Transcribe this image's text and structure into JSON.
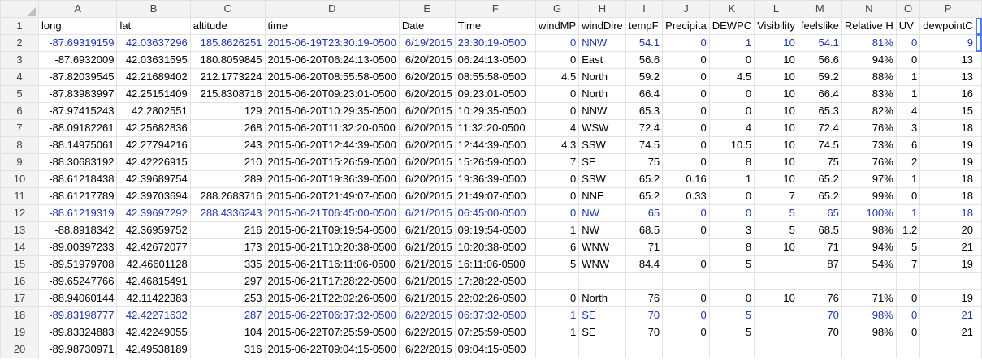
{
  "colors": {
    "blue_row_text": "#1f35a8",
    "selected_outline": "#4a7ee0",
    "header_bg": "#f3f3f3"
  },
  "columns": [
    "A",
    "B",
    "C",
    "D",
    "E",
    "F",
    "G",
    "H",
    "I",
    "J",
    "K",
    "L",
    "M",
    "N",
    "O",
    "P"
  ],
  "header_row": {
    "row_label": "1",
    "cells": [
      "long",
      "lat",
      "altitude",
      "time",
      "Date",
      "Time",
      "windMP",
      "windDire",
      "tempF",
      "Precipita",
      "DEWPC",
      "Visibility",
      "feelslike",
      "Relative H",
      "UV",
      "dewpointC"
    ]
  },
  "rows": [
    {
      "label": "2",
      "highlight": true,
      "cells": [
        "-87.69319159",
        "42.03637296",
        "185.8626251",
        "2015-06-19T23:30:19-0500",
        "6/19/2015",
        "23:30:19-0500",
        "0",
        "NNW",
        "54.1",
        "0",
        "1",
        "10",
        "54.1",
        "81%",
        "0",
        "9"
      ]
    },
    {
      "label": "3",
      "highlight": false,
      "cells": [
        "-87.6932009",
        "42.03631595",
        "180.8059845",
        "2015-06-20T06:24:13-0500",
        "6/20/2015",
        "06:24:13-0500",
        "0",
        "East",
        "56.6",
        "0",
        "0",
        "10",
        "56.6",
        "94%",
        "0",
        "13"
      ]
    },
    {
      "label": "4",
      "highlight": false,
      "cells": [
        "-87.82039545",
        "42.21689402",
        "212.1773224",
        "2015-06-20T08:55:58-0500",
        "6/20/2015",
        "08:55:58-0500",
        "4.5",
        "North",
        "59.2",
        "0",
        "4.5",
        "10",
        "59.2",
        "88%",
        "1",
        "13"
      ]
    },
    {
      "label": "5",
      "highlight": false,
      "cells": [
        "-87.83983997",
        "42.25151409",
        "215.8308716",
        "2015-06-20T09:23:01-0500",
        "6/20/2015",
        "09:23:01-0500",
        "0",
        "North",
        "66.4",
        "0",
        "0",
        "10",
        "66.4",
        "83%",
        "1",
        "16"
      ]
    },
    {
      "label": "6",
      "highlight": false,
      "cells": [
        "-87.97415243",
        "42.2802551",
        "129",
        "2015-06-20T10:29:35-0500",
        "6/20/2015",
        "10:29:35-0500",
        "0",
        "NNW",
        "65.3",
        "0",
        "0",
        "10",
        "65.3",
        "82%",
        "4",
        "15"
      ]
    },
    {
      "label": "7",
      "highlight": false,
      "cells": [
        "-88.09182261",
        "42.25682836",
        "268",
        "2015-06-20T11:32:20-0500",
        "6/20/2015",
        "11:32:20-0500",
        "4",
        "WSW",
        "72.4",
        "0",
        "4",
        "10",
        "72.4",
        "76%",
        "3",
        "18"
      ]
    },
    {
      "label": "8",
      "highlight": false,
      "cells": [
        "-88.14975061",
        "42.27794216",
        "243",
        "2015-06-20T12:44:39-0500",
        "6/20/2015",
        "12:44:39-0500",
        "4.3",
        "SSW",
        "74.5",
        "0",
        "10.5",
        "10",
        "74.5",
        "73%",
        "6",
        "19"
      ]
    },
    {
      "label": "9",
      "highlight": false,
      "cells": [
        "-88.30683192",
        "42.42226915",
        "210",
        "2015-06-20T15:26:59-0500",
        "6/20/2015",
        "15:26:59-0500",
        "7",
        "SE",
        "75",
        "0",
        "8",
        "10",
        "75",
        "76%",
        "2",
        "19"
      ]
    },
    {
      "label": "10",
      "highlight": false,
      "cells": [
        "-88.61218438",
        "42.39689754",
        "289",
        "2015-06-20T19:36:39-0500",
        "6/20/2015",
        "19:36:39-0500",
        "0",
        "SSW",
        "65.2",
        "0.16",
        "1",
        "10",
        "65.2",
        "97%",
        "1",
        "18"
      ]
    },
    {
      "label": "11",
      "highlight": false,
      "cells": [
        "-88.61217789",
        "42.39703694",
        "288.2683716",
        "2015-06-20T21:49:07-0500",
        "6/20/2015",
        "21:49:07-0500",
        "0",
        "NNE",
        "65.2",
        "0.33",
        "0",
        "7",
        "65.2",
        "99%",
        "0",
        "18"
      ]
    },
    {
      "label": "12",
      "highlight": true,
      "cells": [
        "-88.61219319",
        "42.39697292",
        "288.4336243",
        "2015-06-21T06:45:00-0500",
        "6/21/2015",
        "06:45:00-0500",
        "0",
        "NW",
        "65",
        "0",
        "0",
        "5",
        "65",
        "100%",
        "1",
        "18"
      ]
    },
    {
      "label": "13",
      "highlight": false,
      "cells": [
        "-88.8918342",
        "42.36959752",
        "216",
        "2015-06-21T09:19:54-0500",
        "6/21/2015",
        "09:19:54-0500",
        "1",
        "NW",
        "68.5",
        "0",
        "3",
        "5",
        "68.5",
        "98%",
        "1.2",
        "20"
      ]
    },
    {
      "label": "14",
      "highlight": false,
      "cells": [
        "-89.00397233",
        "42.42672077",
        "173",
        "2015-06-21T10:20:38-0500",
        "6/21/2015",
        "10:20:38-0500",
        "6",
        "WNW",
        "71",
        "",
        "8",
        "10",
        "71",
        "94%",
        "5",
        "21"
      ]
    },
    {
      "label": "15",
      "highlight": false,
      "cells": [
        "-89.51979708",
        "42.46601128",
        "335",
        "2015-06-21T16:11:06-0500",
        "6/21/2015",
        "16:11:06-0500",
        "5",
        "WNW",
        "84.4",
        "0",
        "5",
        "",
        "87",
        "54%",
        "7",
        "19"
      ]
    },
    {
      "label": "16",
      "highlight": false,
      "cells": [
        "-89.65247766",
        "42.46815491",
        "297",
        "2015-06-21T17:28:22-0500",
        "6/21/2015",
        "17:28:22-0500",
        "",
        "",
        "",
        "",
        "",
        "",
        "",
        "",
        "",
        ""
      ]
    },
    {
      "label": "17",
      "highlight": false,
      "cells": [
        "-88.94060144",
        "42.11422383",
        "253",
        "2015-06-21T22:02:26-0500",
        "6/21/2015",
        "22:02:26-0500",
        "0",
        "North",
        "76",
        "0",
        "0",
        "10",
        "76",
        "71%",
        "0",
        "19"
      ]
    },
    {
      "label": "18",
      "highlight": true,
      "cells": [
        "-89.83198777",
        "42.42271632",
        "287",
        "2015-06-22T06:37:32-0500",
        "6/22/2015",
        "06:37:32-0500",
        "1",
        "SE",
        "70",
        "0",
        "5",
        "",
        "70",
        "98%",
        "0",
        "21"
      ]
    },
    {
      "label": "19",
      "highlight": false,
      "cells": [
        "-89.83324883",
        "42.42249055",
        "104",
        "2015-06-22T07:25:59-0500",
        "6/22/2015",
        "07:25:59-0500",
        "1",
        "SE",
        "70",
        "0",
        "5",
        "",
        "70",
        "98%",
        "0",
        "21"
      ]
    },
    {
      "label": "20",
      "highlight": false,
      "cells": [
        "-89.98730971",
        "42.49538189",
        "316",
        "2015-06-22T09:04:15-0500",
        "6/22/2015",
        "09:04:15-0500",
        "",
        "",
        "",
        "",
        "",
        "",
        "",
        "",
        "",
        ""
      ]
    }
  ]
}
